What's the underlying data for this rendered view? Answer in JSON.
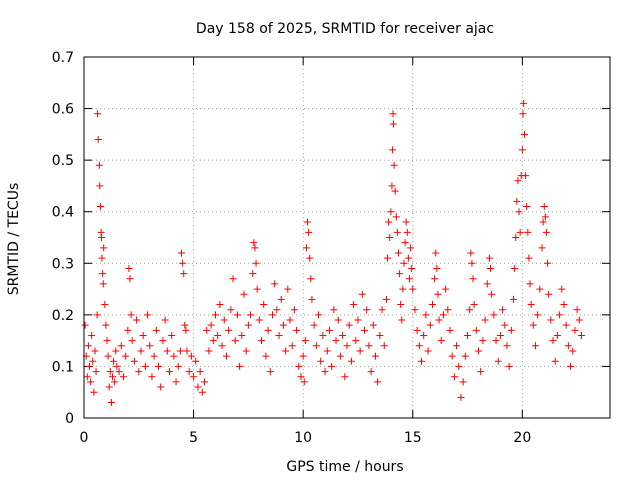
{
  "chart_data": {
    "type": "scatter",
    "title": "Day 158 of 2025, SRMTID for receiver ajac",
    "xlabel": "GPS time / hours",
    "ylabel": "SRMTID / TECUs",
    "xlim": [
      0,
      24
    ],
    "ylim": [
      0,
      0.7
    ],
    "xticks": [
      0,
      5,
      10,
      15,
      20
    ],
    "yticks": [
      0,
      0.1,
      0.2,
      0.3,
      0.4,
      0.5,
      0.6,
      0.7
    ],
    "xtick_labels": [
      "0",
      "5",
      "10",
      "15",
      "20"
    ],
    "ytick_labels": [
      "0",
      "0.1",
      "0.2",
      "0.3",
      "0.4",
      "0.5",
      "0.6",
      "0.7"
    ],
    "grid": true,
    "marker": "+",
    "color": "#ff0000",
    "series": [
      {
        "name": "SRMTID",
        "points": [
          [
            0.05,
            0.18
          ],
          [
            0.1,
            0.12
          ],
          [
            0.15,
            0.08
          ],
          [
            0.2,
            0.14
          ],
          [
            0.25,
            0.1
          ],
          [
            0.3,
            0.07
          ],
          [
            0.35,
            0.16
          ],
          [
            0.4,
            0.11
          ],
          [
            0.45,
            0.05
          ],
          [
            0.5,
            0.13
          ],
          [
            0.55,
            0.09
          ],
          [
            0.6,
            0.2
          ],
          [
            0.62,
            0.59
          ],
          [
            0.65,
            0.54
          ],
          [
            0.7,
            0.49
          ],
          [
            0.72,
            0.45
          ],
          [
            0.75,
            0.41
          ],
          [
            0.78,
            0.36
          ],
          [
            0.8,
            0.35
          ],
          [
            0.82,
            0.31
          ],
          [
            0.85,
            0.28
          ],
          [
            0.88,
            0.26
          ],
          [
            0.9,
            0.33
          ],
          [
            0.95,
            0.22
          ],
          [
            1.0,
            0.18
          ],
          [
            1.05,
            0.15
          ],
          [
            1.1,
            0.12
          ],
          [
            1.15,
            0.06
          ],
          [
            1.2,
            0.09
          ],
          [
            1.25,
            0.03
          ],
          [
            1.3,
            0.08
          ],
          [
            1.35,
            0.11
          ],
          [
            1.4,
            0.07
          ],
          [
            1.45,
            0.13
          ],
          [
            1.5,
            0.1
          ],
          [
            1.6,
            0.09
          ],
          [
            1.7,
            0.14
          ],
          [
            1.8,
            0.08
          ],
          [
            1.9,
            0.12
          ],
          [
            2.0,
            0.17
          ],
          [
            2.05,
            0.29
          ],
          [
            2.1,
            0.27
          ],
          [
            2.15,
            0.2
          ],
          [
            2.2,
            0.15
          ],
          [
            2.3,
            0.11
          ],
          [
            2.4,
            0.19
          ],
          [
            2.5,
            0.09
          ],
          [
            2.6,
            0.13
          ],
          [
            2.7,
            0.16
          ],
          [
            2.8,
            0.1
          ],
          [
            2.9,
            0.2
          ],
          [
            3.0,
            0.14
          ],
          [
            3.1,
            0.08
          ],
          [
            3.2,
            0.12
          ],
          [
            3.3,
            0.17
          ],
          [
            3.4,
            0.1
          ],
          [
            3.5,
            0.06
          ],
          [
            3.6,
            0.15
          ],
          [
            3.7,
            0.19
          ],
          [
            3.8,
            0.13
          ],
          [
            3.9,
            0.09
          ],
          [
            4.0,
            0.16
          ],
          [
            4.1,
            0.12
          ],
          [
            4.2,
            0.07
          ],
          [
            4.3,
            0.1
          ],
          [
            4.4,
            0.13
          ],
          [
            4.45,
            0.32
          ],
          [
            4.5,
            0.3
          ],
          [
            4.55,
            0.28
          ],
          [
            4.6,
            0.18
          ],
          [
            4.65,
            0.17
          ],
          [
            4.7,
            0.13
          ],
          [
            4.8,
            0.09
          ],
          [
            4.9,
            0.12
          ],
          [
            5.0,
            0.08
          ],
          [
            5.1,
            0.11
          ],
          [
            5.2,
            0.06
          ],
          [
            5.3,
            0.09
          ],
          [
            5.4,
            0.05
          ],
          [
            5.5,
            0.07
          ],
          [
            5.6,
            0.17
          ],
          [
            5.7,
            0.13
          ],
          [
            5.8,
            0.18
          ],
          [
            5.9,
            0.15
          ],
          [
            6.0,
            0.2
          ],
          [
            6.1,
            0.16
          ],
          [
            6.2,
            0.22
          ],
          [
            6.3,
            0.14
          ],
          [
            6.4,
            0.19
          ],
          [
            6.5,
            0.12
          ],
          [
            6.6,
            0.17
          ],
          [
            6.7,
            0.21
          ],
          [
            6.8,
            0.27
          ],
          [
            6.9,
            0.15
          ],
          [
            7.0,
            0.2
          ],
          [
            7.1,
            0.1
          ],
          [
            7.2,
            0.16
          ],
          [
            7.3,
            0.24
          ],
          [
            7.4,
            0.13
          ],
          [
            7.5,
            0.18
          ],
          [
            7.6,
            0.2
          ],
          [
            7.7,
            0.28
          ],
          [
            7.75,
            0.34
          ],
          [
            7.8,
            0.33
          ],
          [
            7.85,
            0.3
          ],
          [
            7.9,
            0.25
          ],
          [
            8.0,
            0.19
          ],
          [
            8.1,
            0.15
          ],
          [
            8.2,
            0.22
          ],
          [
            8.3,
            0.12
          ],
          [
            8.4,
            0.17
          ],
          [
            8.5,
            0.09
          ],
          [
            8.6,
            0.2
          ],
          [
            8.7,
            0.26
          ],
          [
            8.8,
            0.21
          ],
          [
            8.9,
            0.16
          ],
          [
            9.0,
            0.23
          ],
          [
            9.1,
            0.18
          ],
          [
            9.2,
            0.13
          ],
          [
            9.3,
            0.25
          ],
          [
            9.4,
            0.19
          ],
          [
            9.5,
            0.14
          ],
          [
            9.6,
            0.21
          ],
          [
            9.7,
            0.17
          ],
          [
            9.8,
            0.1
          ],
          [
            9.9,
            0.08
          ],
          [
            10.0,
            0.12
          ],
          [
            10.05,
            0.07
          ],
          [
            10.1,
            0.15
          ],
          [
            10.15,
            0.33
          ],
          [
            10.2,
            0.38
          ],
          [
            10.25,
            0.36
          ],
          [
            10.3,
            0.31
          ],
          [
            10.35,
            0.27
          ],
          [
            10.4,
            0.23
          ],
          [
            10.5,
            0.18
          ],
          [
            10.6,
            0.14
          ],
          [
            10.7,
            0.2
          ],
          [
            10.8,
            0.11
          ],
          [
            10.9,
            0.16
          ],
          [
            11.0,
            0.09
          ],
          [
            11.1,
            0.13
          ],
          [
            11.2,
            0.17
          ],
          [
            11.3,
            0.1
          ],
          [
            11.4,
            0.21
          ],
          [
            11.5,
            0.15
          ],
          [
            11.6,
            0.19
          ],
          [
            11.7,
            0.12
          ],
          [
            11.8,
            0.16
          ],
          [
            11.9,
            0.08
          ],
          [
            12.0,
            0.14
          ],
          [
            12.1,
            0.18
          ],
          [
            12.2,
            0.11
          ],
          [
            12.3,
            0.22
          ],
          [
            12.4,
            0.15
          ],
          [
            12.5,
            0.19
          ],
          [
            12.6,
            0.13
          ],
          [
            12.7,
            0.24
          ],
          [
            12.8,
            0.17
          ],
          [
            12.9,
            0.21
          ],
          [
            13.0,
            0.14
          ],
          [
            13.1,
            0.09
          ],
          [
            13.2,
            0.18
          ],
          [
            13.3,
            0.12
          ],
          [
            13.4,
            0.07
          ],
          [
            13.5,
            0.16
          ],
          [
            13.6,
            0.21
          ],
          [
            13.7,
            0.14
          ],
          [
            13.8,
            0.23
          ],
          [
            13.85,
            0.31
          ],
          [
            13.9,
            0.38
          ],
          [
            13.95,
            0.35
          ],
          [
            14.0,
            0.4
          ],
          [
            14.05,
            0.45
          ],
          [
            14.08,
            0.52
          ],
          [
            14.1,
            0.59
          ],
          [
            14.12,
            0.57
          ],
          [
            14.15,
            0.49
          ],
          [
            14.2,
            0.44
          ],
          [
            14.25,
            0.39
          ],
          [
            14.3,
            0.36
          ],
          [
            14.35,
            0.32
          ],
          [
            14.4,
            0.28
          ],
          [
            14.45,
            0.22
          ],
          [
            14.5,
            0.19
          ],
          [
            14.55,
            0.25
          ],
          [
            14.6,
            0.3
          ],
          [
            14.65,
            0.34
          ],
          [
            14.7,
            0.38
          ],
          [
            14.75,
            0.36
          ],
          [
            14.8,
            0.31
          ],
          [
            14.85,
            0.27
          ],
          [
            14.9,
            0.33
          ],
          [
            14.95,
            0.29
          ],
          [
            15.0,
            0.25
          ],
          [
            15.1,
            0.21
          ],
          [
            15.2,
            0.17
          ],
          [
            15.3,
            0.14
          ],
          [
            15.4,
            0.11
          ],
          [
            15.5,
            0.16
          ],
          [
            15.6,
            0.2
          ],
          [
            15.7,
            0.13
          ],
          [
            15.8,
            0.18
          ],
          [
            15.9,
            0.22
          ],
          [
            16.0,
            0.27
          ],
          [
            16.05,
            0.32
          ],
          [
            16.1,
            0.29
          ],
          [
            16.15,
            0.24
          ],
          [
            16.2,
            0.19
          ],
          [
            16.3,
            0.15
          ],
          [
            16.4,
            0.2
          ],
          [
            16.5,
            0.25
          ],
          [
            16.6,
            0.21
          ],
          [
            16.7,
            0.17
          ],
          [
            16.8,
            0.12
          ],
          [
            16.9,
            0.08
          ],
          [
            17.0,
            0.14
          ],
          [
            17.1,
            0.1
          ],
          [
            17.2,
            0.04
          ],
          [
            17.3,
            0.07
          ],
          [
            17.4,
            0.12
          ],
          [
            17.5,
            0.16
          ],
          [
            17.6,
            0.21
          ],
          [
            17.65,
            0.32
          ],
          [
            17.7,
            0.3
          ],
          [
            17.75,
            0.27
          ],
          [
            17.8,
            0.22
          ],
          [
            17.9,
            0.17
          ],
          [
            18.0,
            0.13
          ],
          [
            18.1,
            0.09
          ],
          [
            18.2,
            0.15
          ],
          [
            18.3,
            0.19
          ],
          [
            18.4,
            0.26
          ],
          [
            18.5,
            0.31
          ],
          [
            18.55,
            0.29
          ],
          [
            18.6,
            0.24
          ],
          [
            18.7,
            0.2
          ],
          [
            18.8,
            0.15
          ],
          [
            18.9,
            0.11
          ],
          [
            19.0,
            0.16
          ],
          [
            19.1,
            0.21
          ],
          [
            19.2,
            0.18
          ],
          [
            19.3,
            0.14
          ],
          [
            19.4,
            0.1
          ],
          [
            19.5,
            0.17
          ],
          [
            19.6,
            0.23
          ],
          [
            19.65,
            0.29
          ],
          [
            19.7,
            0.35
          ],
          [
            19.75,
            0.42
          ],
          [
            19.8,
            0.46
          ],
          [
            19.85,
            0.4
          ],
          [
            19.9,
            0.36
          ],
          [
            19.95,
            0.47
          ],
          [
            20.0,
            0.52
          ],
          [
            20.03,
            0.59
          ],
          [
            20.06,
            0.61
          ],
          [
            20.1,
            0.55
          ],
          [
            20.15,
            0.47
          ],
          [
            20.2,
            0.41
          ],
          [
            20.25,
            0.36
          ],
          [
            20.3,
            0.31
          ],
          [
            20.35,
            0.26
          ],
          [
            20.4,
            0.22
          ],
          [
            20.5,
            0.18
          ],
          [
            20.6,
            0.14
          ],
          [
            20.7,
            0.2
          ],
          [
            20.8,
            0.25
          ],
          [
            20.9,
            0.33
          ],
          [
            20.95,
            0.38
          ],
          [
            21.0,
            0.41
          ],
          [
            21.05,
            0.39
          ],
          [
            21.1,
            0.36
          ],
          [
            21.15,
            0.3
          ],
          [
            21.2,
            0.24
          ],
          [
            21.3,
            0.19
          ],
          [
            21.4,
            0.15
          ],
          [
            21.5,
            0.11
          ],
          [
            21.6,
            0.16
          ],
          [
            21.7,
            0.2
          ],
          [
            21.8,
            0.25
          ],
          [
            21.9,
            0.22
          ],
          [
            22.0,
            0.18
          ],
          [
            22.1,
            0.14
          ],
          [
            22.2,
            0.1
          ],
          [
            22.3,
            0.13
          ],
          [
            22.4,
            0.17
          ],
          [
            22.5,
            0.21
          ],
          [
            22.6,
            0.19
          ],
          [
            22.7,
            0.16
          ]
        ]
      }
    ]
  }
}
